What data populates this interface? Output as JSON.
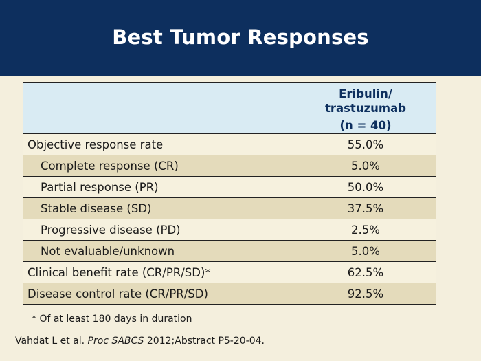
{
  "slide": {
    "title": "Best Tumor Responses"
  },
  "table": {
    "column_header": {
      "line1": "Eribulin/",
      "line2": "trastuzumab",
      "line3": "(n = 40)"
    },
    "rows": [
      {
        "label": "Objective response rate",
        "value": "55.0%"
      },
      {
        "label": "Complete response (CR)",
        "value": "5.0%"
      },
      {
        "label": "Partial response (PR)",
        "value": "50.0%"
      },
      {
        "label": "Stable disease (SD)",
        "value": "37.5%"
      },
      {
        "label": "Progressive disease (PD)",
        "value": "2.5%"
      },
      {
        "label": "Not evaluable/unknown",
        "value": "5.0%"
      },
      {
        "label": "Clinical benefit rate (CR/PR/SD)*",
        "value": "62.5%"
      },
      {
        "label": "Disease control rate (CR/PR/SD)",
        "value": "92.5%"
      }
    ]
  },
  "footnote": "* Of at least 180 days in duration",
  "citation": {
    "authors": "Vahdat L et al.",
    "journal": "Proc SABCS",
    "details": "2012;Abstract P5-20-04."
  },
  "colors": {
    "header_bg": "#0d2f5e",
    "page_bg": "#f4efdd",
    "table_header_bg": "#d9ebf3",
    "row_light": "#f6f1de",
    "row_dark": "#e4dbbb"
  }
}
